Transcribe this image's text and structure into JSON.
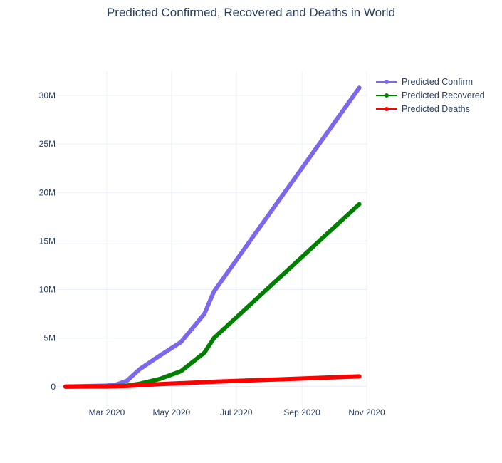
{
  "chart_data": {
    "type": "line",
    "title": "Predicted Confirmed, Recovered and Deaths in World",
    "xlabel": "",
    "ylabel": "",
    "x_axis_type": "date",
    "xlim": [
      "2020-01-14",
      "2020-11-01"
    ],
    "ylim": [
      -2000000,
      32500000
    ],
    "grid": true,
    "legend_position": "top-right",
    "x_ticks": [
      {
        "date": "2020-03-01",
        "label": "Mar 2020"
      },
      {
        "date": "2020-05-01",
        "label": "May 2020"
      },
      {
        "date": "2020-07-01",
        "label": "Jul 2020"
      },
      {
        "date": "2020-09-01",
        "label": "Sep 2020"
      },
      {
        "date": "2020-11-01",
        "label": "Nov 2020"
      }
    ],
    "y_ticks": [
      {
        "value": 0,
        "label": "0"
      },
      {
        "value": 5000000,
        "label": "5M"
      },
      {
        "value": 10000000,
        "label": "10M"
      },
      {
        "value": 15000000,
        "label": "15M"
      },
      {
        "value": 20000000,
        "label": "20M"
      },
      {
        "value": 25000000,
        "label": "25M"
      },
      {
        "value": 30000000,
        "label": "30M"
      }
    ],
    "series": [
      {
        "name": "Predicted Confirm",
        "color": "#7b68ee",
        "x": [
          "2020-01-22",
          "2020-02-15",
          "2020-03-01",
          "2020-03-10",
          "2020-03-20",
          "2020-04-01",
          "2020-04-20",
          "2020-05-10",
          "2020-06-01",
          "2020-06-10",
          "2020-10-25"
        ],
        "y": [
          0,
          60000,
          100000,
          220000,
          600000,
          1800000,
          3200000,
          4600000,
          7500000,
          9800000,
          30800000
        ]
      },
      {
        "name": "Predicted Recovered",
        "color": "#008000",
        "x": [
          "2020-01-22",
          "2020-02-15",
          "2020-03-01",
          "2020-03-20",
          "2020-04-01",
          "2020-04-20",
          "2020-05-10",
          "2020-06-01",
          "2020-06-10",
          "2020-10-25"
        ],
        "y": [
          0,
          20000,
          40000,
          100000,
          300000,
          800000,
          1600000,
          3500000,
          5000000,
          18800000
        ]
      },
      {
        "name": "Predicted Deaths",
        "color": "#ff0000",
        "x": [
          "2020-01-22",
          "2020-03-01",
          "2020-03-20",
          "2020-04-20",
          "2020-06-10",
          "2020-10-25"
        ],
        "y": [
          0,
          10000,
          60000,
          250000,
          500000,
          1050000
        ]
      }
    ]
  }
}
